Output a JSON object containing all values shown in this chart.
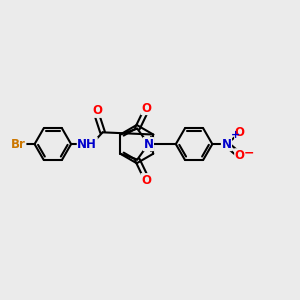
{
  "bg_color": "#ebebeb",
  "bond_color": "#000000",
  "bond_width": 1.5,
  "atom_colors": {
    "O": "#ff0000",
    "N": "#0000cc",
    "Br": "#cc7700",
    "plus": "#0000cc",
    "minus": "#ff0000"
  },
  "font_size": 8.5
}
